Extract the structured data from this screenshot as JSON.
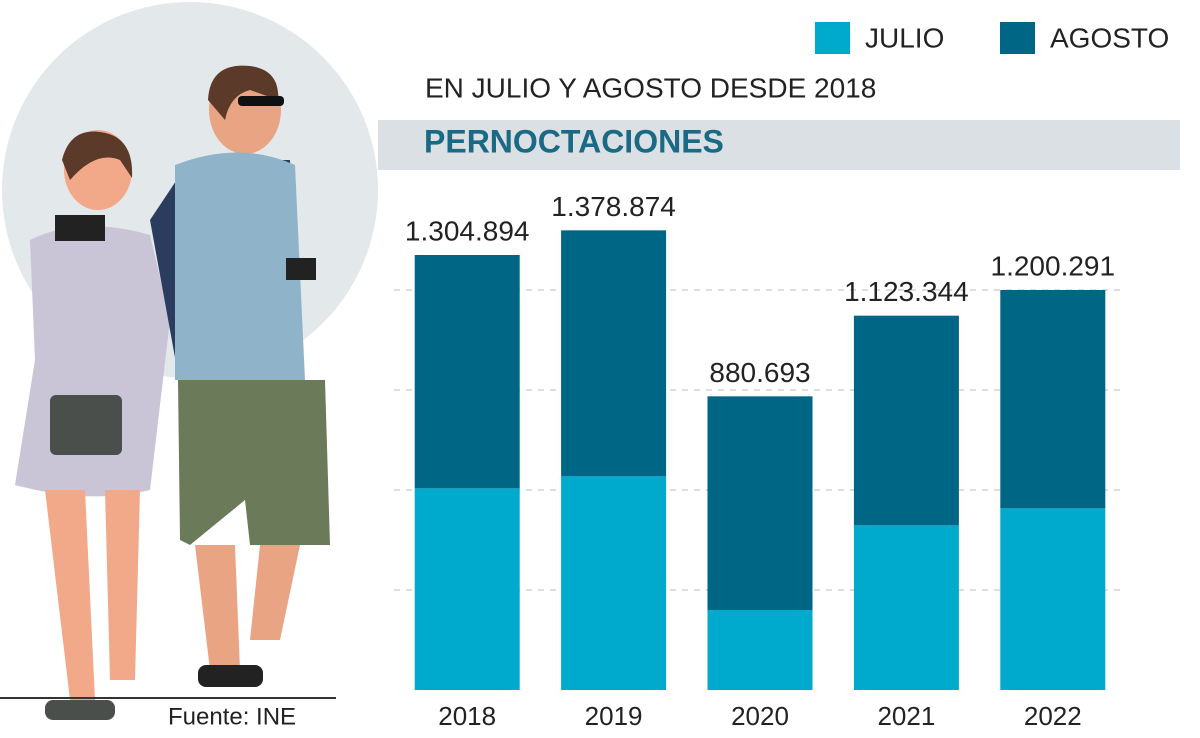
{
  "chart_data": {
    "type": "stacked_bar",
    "title": "PERNOCTACIONES",
    "subtitle": "EN JULIO Y AGOSTO DESDE 2018",
    "source": "Fuente: INE",
    "categories": [
      "2018",
      "2019",
      "2020",
      "2021",
      "2022"
    ],
    "series": [
      {
        "name": "JULIO",
        "color": "#00aacc",
        "values": [
          605000,
          641000,
          240000,
          494000,
          545000
        ]
      },
      {
        "name": "AGOSTO",
        "color": "#006685",
        "values": [
          700000,
          738000,
          641000,
          629000,
          655000
        ]
      }
    ],
    "totals": {
      "values": [
        1304894,
        1378874,
        880693,
        1123344,
        1200291
      ],
      "value_labels": [
        "1.304.894",
        "1.378.874",
        "880.693",
        "1.123.344",
        "1.200.291"
      ]
    },
    "ylim": [
      0,
      1500000
    ],
    "yticks": [
      300000,
      600000,
      900000,
      1200000
    ],
    "grid": true
  }
}
